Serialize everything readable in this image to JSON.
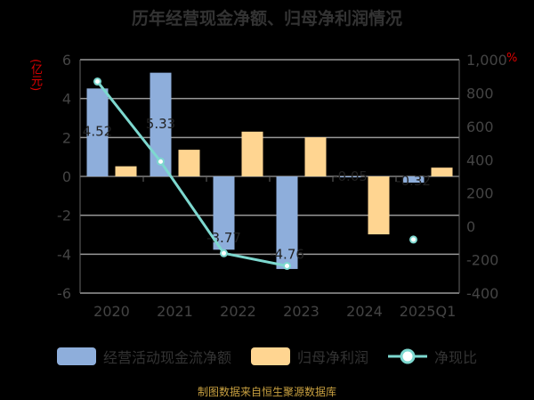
{
  "title": "历年经营现金净额、归母净利润情况",
  "footer": "制图数据来自恒生聚源数据库",
  "chart_data": {
    "type": "bar",
    "categories": [
      "2020",
      "2021",
      "2022",
      "2023",
      "2024",
      "2025Q1"
    ],
    "left_unit": "(亿元)",
    "right_unit": "%",
    "ylim": [
      -6,
      6
    ],
    "yticks": [
      "6",
      "4",
      "2",
      "0",
      "-2",
      "-4",
      "-6"
    ],
    "y2lim": [
      -400,
      1000
    ],
    "y2ticks": [
      "1,000",
      "800",
      "600",
      "400",
      "200",
      "0",
      "-200",
      "-400"
    ],
    "grid": true,
    "legend": "bottom",
    "series": [
      {
        "name": "经营活动现金流净额",
        "type": "bar",
        "color": "#8eaedb",
        "values": [
          4.52,
          5.33,
          -3.77,
          -4.76,
          -0.05,
          -0.32
        ],
        "labels": [
          "4.52",
          "5.33",
          "-3.77",
          "-4.76",
          "-0.05",
          "-0.32"
        ]
      },
      {
        "name": "归母净利润",
        "type": "bar",
        "color": "#ffd591",
        "values": [
          0.52,
          1.37,
          2.3,
          2.01,
          -2.98,
          0.45
        ]
      },
      {
        "name": "净现比",
        "type": "line",
        "axis": "right",
        "color": "#7dd8cf",
        "values": [
          869,
          389,
          -161,
          -237,
          null,
          -79
        ]
      }
    ]
  }
}
